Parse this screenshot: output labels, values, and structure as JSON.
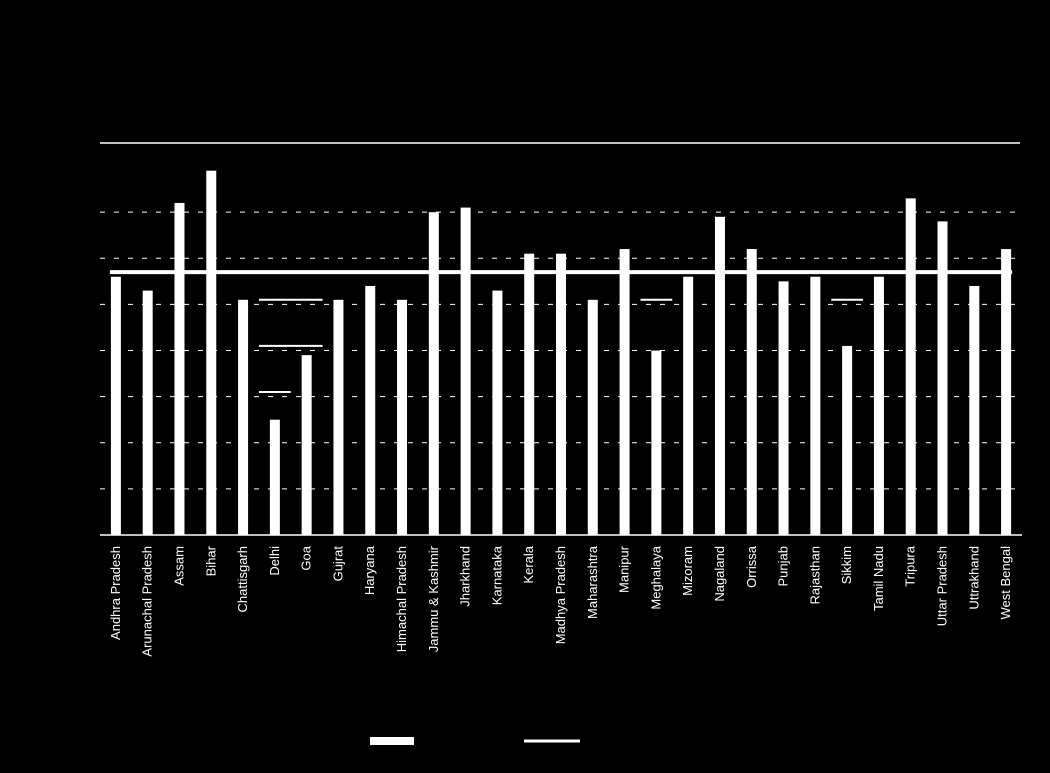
{
  "chart_data": {
    "type": "bar",
    "title": "",
    "subtitle": "",
    "xlabel": "",
    "ylabel": "",
    "categories": [
      "Andhra Pradesh",
      "Arunachal Pradesh",
      "Assam",
      "Bihar",
      "Chattisgarh",
      "Delhi",
      "Goa",
      "Gujrat",
      "Haryana",
      "Himachal Pradesh",
      "Jammu & Kashmir",
      "Jharkhand",
      "Karnataka",
      "Kerala",
      "Madhya Pradesh",
      "Maharashtra",
      "Manipur",
      "Meghalaya",
      "Mizoram",
      "Nagaland",
      "Orrissa",
      "Punjab",
      "Rajasthan",
      "Sikkim",
      "Tamil Nadu",
      "Tripura",
      "Uttar Pradesh",
      "Uttrakhand",
      "West Bengal"
    ],
    "values": [
      56,
      53,
      72,
      79,
      51,
      25,
      39,
      51,
      54,
      51,
      70,
      71,
      53,
      61,
      61,
      51,
      62,
      40,
      56,
      69,
      62,
      55,
      56,
      41,
      56,
      73,
      68,
      54,
      62
    ],
    "reference_line": 57,
    "sub_markers": [
      {
        "start": 5,
        "end": 6,
        "value": 51
      },
      {
        "start": 5,
        "end": 6,
        "value": 41
      },
      {
        "start": 5,
        "end": 5,
        "value": 31
      },
      {
        "start": 17,
        "end": 17,
        "value": 51
      },
      {
        "start": 23,
        "end": 23,
        "value": 51
      }
    ],
    "ylim": [
      0,
      85
    ],
    "grid": true,
    "legend_position": "bottom",
    "colors": {
      "background": "#000000",
      "bar": "#ffffff",
      "line": "#ffffff",
      "grid": "#ffffff"
    }
  }
}
